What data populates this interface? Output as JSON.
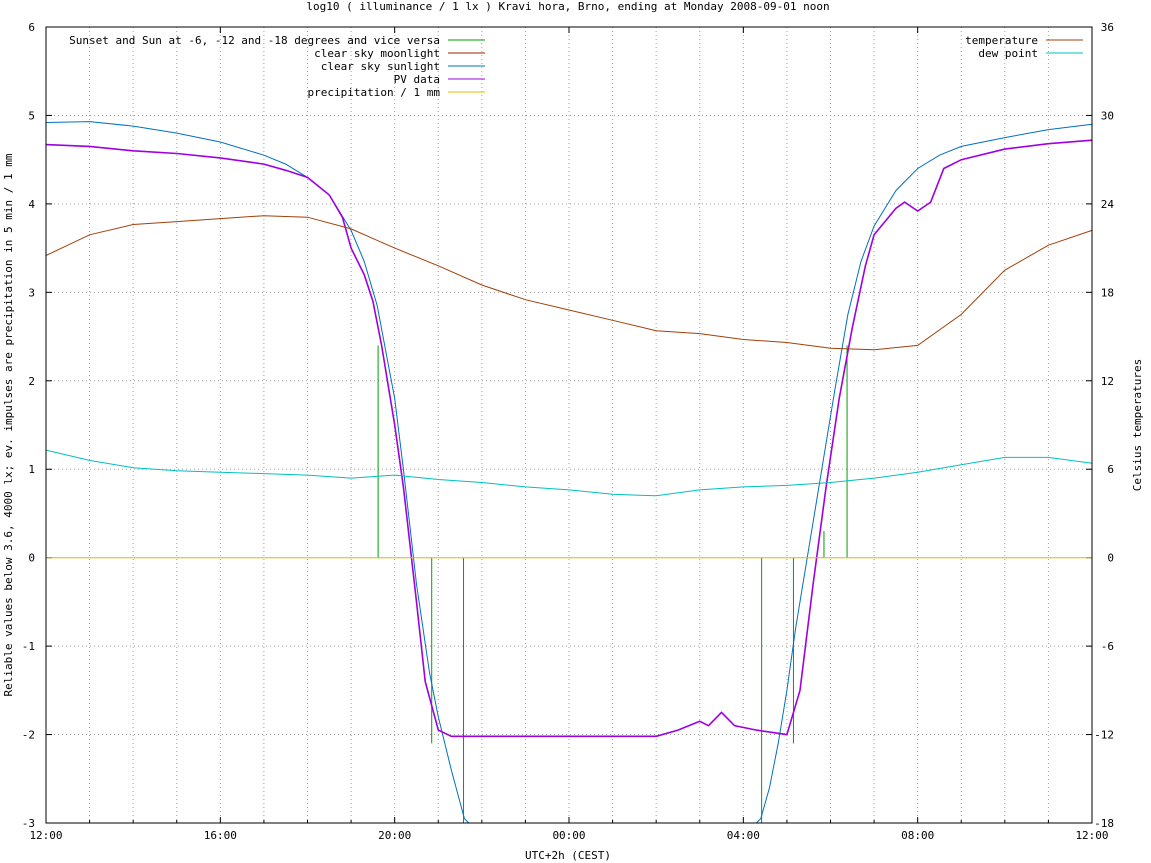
{
  "chart_data": {
    "type": "line",
    "title": "log10 ( illuminance / 1 lx ) Kravi hora, Brno, ending at Monday 2008-09-01 noon",
    "xlabel": "UTC+2h (CEST)",
    "ylabel": "Reliable values below 3.6, 4000 lx; ev. impulses are precipitation in 5 min / 1 mm",
    "y2label": "Celsius temperatures",
    "xlim": [
      12,
      36
    ],
    "ylim": [
      -3,
      6
    ],
    "y2lim": [
      -18,
      36
    ],
    "x_ticks": [
      {
        "x": 12,
        "label": "12:00"
      },
      {
        "x": 16,
        "label": "16:00"
      },
      {
        "x": 20,
        "label": "20:00"
      },
      {
        "x": 24,
        "label": "00:00"
      },
      {
        "x": 28,
        "label": "04:00"
      },
      {
        "x": 32,
        "label": "08:00"
      },
      {
        "x": 36,
        "label": "12:00"
      }
    ],
    "y_ticks": [
      {
        "y": 6,
        "label": "6"
      },
      {
        "y": 5,
        "label": "5"
      },
      {
        "y": 4,
        "label": "4"
      },
      {
        "y": 3,
        "label": "3"
      },
      {
        "y": 2,
        "label": "2"
      },
      {
        "y": 1,
        "label": "1"
      },
      {
        "y": 0,
        "label": "0"
      },
      {
        "y": -1,
        "label": "-1"
      },
      {
        "y": -2,
        "label": "-2"
      },
      {
        "y": -3,
        "label": "-3"
      }
    ],
    "y2_ticks": [
      {
        "y": 36,
        "label": "36"
      },
      {
        "y": 30,
        "label": "30"
      },
      {
        "y": 24,
        "label": "24"
      },
      {
        "y": 18,
        "label": "18"
      },
      {
        "y": 12,
        "label": "12"
      },
      {
        "y": 6,
        "label": "6"
      },
      {
        "y": 0,
        "label": "0"
      },
      {
        "y": -6,
        "label": "-6"
      },
      {
        "y": -12,
        "label": "-12"
      },
      {
        "y": -18,
        "label": "-18"
      }
    ],
    "grid": true,
    "legend_left": "top-left",
    "legend_right": "top-right",
    "series": [
      {
        "name": "Sunset and Sun at -6, -12 and -18 degrees and vice versa",
        "color": "#00a000",
        "style": "impulses",
        "axis": "y",
        "points": [
          [
            19.62,
            2.4
          ],
          [
            20.85,
            -2.1
          ],
          [
            21.58,
            -3.0
          ],
          [
            28.42,
            -3.0
          ],
          [
            29.15,
            -2.1
          ],
          [
            29.85,
            0.3
          ],
          [
            30.38,
            2.4
          ]
        ]
      },
      {
        "name": "clear sky moonlight",
        "color": "#a02000",
        "style": "line",
        "axis": "y",
        "points": []
      },
      {
        "name": "clear sky sunlight",
        "color": "#0070c0",
        "style": "line",
        "axis": "y",
        "points": [
          [
            12.0,
            4.92
          ],
          [
            13.0,
            4.93
          ],
          [
            14.0,
            4.88
          ],
          [
            15.0,
            4.8
          ],
          [
            16.0,
            4.7
          ],
          [
            17.0,
            4.55
          ],
          [
            17.5,
            4.45
          ],
          [
            18.0,
            4.3
          ],
          [
            18.5,
            4.1
          ],
          [
            19.0,
            3.7
          ],
          [
            19.3,
            3.35
          ],
          [
            19.6,
            2.85
          ],
          [
            20.0,
            1.8
          ],
          [
            20.2,
            1.0
          ],
          [
            20.5,
            -0.3
          ],
          [
            20.8,
            -1.3
          ],
          [
            21.0,
            -1.8
          ],
          [
            21.3,
            -2.4
          ],
          [
            21.6,
            -2.95
          ],
          [
            21.7,
            -3.0
          ],
          [
            28.3,
            -3.0
          ],
          [
            28.4,
            -2.95
          ],
          [
            28.6,
            -2.6
          ],
          [
            28.8,
            -2.1
          ],
          [
            29.0,
            -1.5
          ],
          [
            29.2,
            -0.8
          ],
          [
            29.5,
            0.1
          ],
          [
            29.8,
            1.0
          ],
          [
            30.1,
            1.9
          ],
          [
            30.4,
            2.75
          ],
          [
            30.7,
            3.35
          ],
          [
            31.0,
            3.75
          ],
          [
            31.5,
            4.15
          ],
          [
            32.0,
            4.4
          ],
          [
            32.5,
            4.55
          ],
          [
            33.0,
            4.65
          ],
          [
            34.0,
            4.75
          ],
          [
            35.0,
            4.84
          ],
          [
            36.0,
            4.9
          ]
        ]
      },
      {
        "name": "PV data",
        "color": "#a000e0",
        "style": "line",
        "axis": "y",
        "points": [
          [
            12.0,
            4.67
          ],
          [
            13.0,
            4.65
          ],
          [
            14.0,
            4.6
          ],
          [
            15.0,
            4.57
          ],
          [
            16.0,
            4.52
          ],
          [
            17.0,
            4.45
          ],
          [
            17.5,
            4.38
          ],
          [
            18.0,
            4.3
          ],
          [
            18.5,
            4.1
          ],
          [
            18.8,
            3.85
          ],
          [
            19.0,
            3.5
          ],
          [
            19.3,
            3.2
          ],
          [
            19.5,
            2.9
          ],
          [
            19.7,
            2.4
          ],
          [
            20.0,
            1.5
          ],
          [
            20.2,
            0.8
          ],
          [
            20.5,
            -0.5
          ],
          [
            20.7,
            -1.4
          ],
          [
            21.0,
            -1.95
          ],
          [
            21.3,
            -2.02
          ],
          [
            26.0,
            -2.02
          ],
          [
            26.5,
            -1.95
          ],
          [
            27.0,
            -1.85
          ],
          [
            27.2,
            -1.9
          ],
          [
            27.5,
            -1.75
          ],
          [
            27.8,
            -1.9
          ],
          [
            28.3,
            -1.95
          ],
          [
            29.0,
            -2.0
          ],
          [
            29.3,
            -1.5
          ],
          [
            29.6,
            -0.3
          ],
          [
            29.9,
            0.8
          ],
          [
            30.2,
            1.8
          ],
          [
            30.5,
            2.6
          ],
          [
            30.8,
            3.3
          ],
          [
            31.0,
            3.65
          ],
          [
            31.5,
            3.95
          ],
          [
            31.7,
            4.02
          ],
          [
            32.0,
            3.92
          ],
          [
            32.3,
            4.02
          ],
          [
            32.6,
            4.4
          ],
          [
            33.0,
            4.5
          ],
          [
            34.0,
            4.62
          ],
          [
            35.0,
            4.68
          ],
          [
            36.0,
            4.72
          ]
        ]
      },
      {
        "name": "precipitation / 1 mm",
        "color": "#e0c000",
        "style": "line",
        "axis": "y",
        "points": [
          [
            12.0,
            0.0
          ],
          [
            36.0,
            0.0
          ]
        ]
      },
      {
        "name": "temperature",
        "color": "#a0400a",
        "style": "line",
        "axis": "y2",
        "points": [
          [
            12.0,
            20.5
          ],
          [
            13.0,
            21.9
          ],
          [
            14.0,
            22.6
          ],
          [
            15.0,
            22.8
          ],
          [
            16.0,
            23.0
          ],
          [
            17.0,
            23.2
          ],
          [
            18.0,
            23.1
          ],
          [
            19.0,
            22.3
          ],
          [
            20.0,
            21.0
          ],
          [
            21.0,
            19.8
          ],
          [
            22.0,
            18.5
          ],
          [
            23.0,
            17.5
          ],
          [
            24.0,
            16.8
          ],
          [
            25.0,
            16.1
          ],
          [
            26.0,
            15.4
          ],
          [
            27.0,
            15.2
          ],
          [
            28.0,
            14.8
          ],
          [
            29.0,
            14.6
          ],
          [
            30.0,
            14.2
          ],
          [
            31.0,
            14.1
          ],
          [
            32.0,
            14.4
          ],
          [
            33.0,
            16.5
          ],
          [
            34.0,
            19.5
          ],
          [
            35.0,
            21.2
          ],
          [
            36.0,
            22.2
          ]
        ]
      },
      {
        "name": "dew point",
        "color": "#00c0c0",
        "style": "line",
        "axis": "y2",
        "points": [
          [
            12.0,
            7.3
          ],
          [
            13.0,
            6.6
          ],
          [
            14.0,
            6.1
          ],
          [
            15.0,
            5.9
          ],
          [
            16.0,
            5.8
          ],
          [
            17.0,
            5.7
          ],
          [
            18.0,
            5.6
          ],
          [
            19.0,
            5.4
          ],
          [
            20.0,
            5.6
          ],
          [
            21.0,
            5.3
          ],
          [
            22.0,
            5.1
          ],
          [
            23.0,
            4.8
          ],
          [
            24.0,
            4.6
          ],
          [
            25.0,
            4.3
          ],
          [
            26.0,
            4.2
          ],
          [
            27.0,
            4.6
          ],
          [
            28.0,
            4.8
          ],
          [
            29.0,
            4.9
          ],
          [
            30.0,
            5.1
          ],
          [
            31.0,
            5.4
          ],
          [
            32.0,
            5.8
          ],
          [
            33.0,
            6.3
          ],
          [
            34.0,
            6.8
          ],
          [
            35.0,
            6.8
          ],
          [
            36.0,
            6.4
          ]
        ]
      }
    ]
  }
}
